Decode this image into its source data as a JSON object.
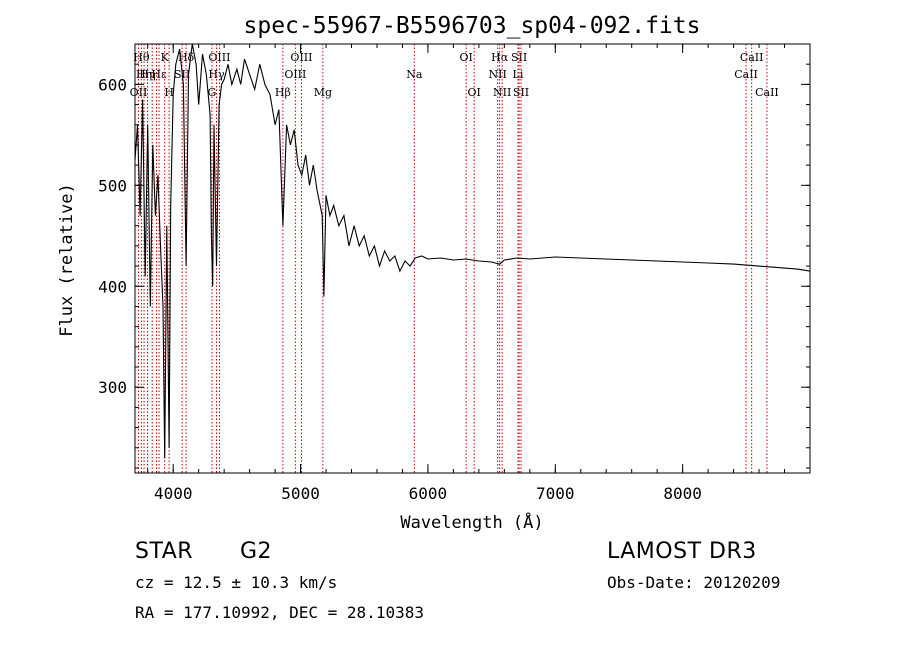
{
  "chart_data": {
    "type": "line",
    "title": "spec-55967-B5596703_sp04-092.fits",
    "xlabel": "Wavelength (Å)",
    "ylabel": "Flux (relative)",
    "xlim": [
      3700,
      9000
    ],
    "ylim": [
      215,
      640
    ],
    "xticks": [
      4000,
      5000,
      6000,
      7000,
      8000
    ],
    "yticks": [
      300,
      400,
      500,
      600
    ],
    "x_minor_step": 200,
    "y_minor_step": 20,
    "grid": false,
    "series": [
      {
        "name": "spectrum",
        "x": [
          3700,
          3720,
          3740,
          3760,
          3780,
          3800,
          3820,
          3840,
          3860,
          3880,
          3900,
          3920,
          3933,
          3950,
          3968,
          3980,
          4000,
          4020,
          4050,
          4080,
          4101,
          4120,
          4150,
          4180,
          4200,
          4230,
          4260,
          4290,
          4300,
          4310,
          4320,
          4340,
          4360,
          4380,
          4400,
          4430,
          4460,
          4500,
          4530,
          4560,
          4600,
          4640,
          4680,
          4720,
          4760,
          4800,
          4830,
          4861,
          4890,
          4920,
          4950,
          4980,
          5010,
          5040,
          5070,
          5100,
          5130,
          5170,
          5183,
          5200,
          5230,
          5260,
          5300,
          5340,
          5380,
          5420,
          5460,
          5500,
          5540,
          5580,
          5620,
          5660,
          5700,
          5740,
          5780,
          5820,
          5860,
          5900,
          5950,
          6000,
          6100,
          6200,
          6300,
          6400,
          6500,
          6563,
          6600,
          6700,
          6800,
          6900,
          7000,
          7200,
          7400,
          7600,
          7800,
          8000,
          8200,
          8400,
          8500,
          8600,
          8700,
          8800,
          8900,
          9000
        ],
        "y": [
          525,
          560,
          470,
          585,
          410,
          560,
          380,
          540,
          470,
          510,
          440,
          380,
          230,
          460,
          240,
          480,
          590,
          620,
          635,
          600,
          420,
          610,
          640,
          620,
          580,
          630,
          610,
          570,
          450,
          400,
          560,
          420,
          580,
          600,
          605,
          620,
          600,
          615,
          600,
          625,
          610,
          595,
          620,
          600,
          590,
          560,
          575,
          460,
          560,
          540,
          555,
          520,
          510,
          530,
          500,
          520,
          495,
          470,
          390,
          490,
          470,
          480,
          460,
          470,
          440,
          460,
          440,
          450,
          430,
          440,
          420,
          435,
          425,
          430,
          415,
          425,
          420,
          428,
          430,
          427,
          428,
          426,
          427,
          425,
          424,
          422,
          426,
          428,
          427,
          428,
          429,
          428,
          427,
          426,
          425,
          424,
          423,
          422,
          421,
          420,
          419,
          418,
          417,
          415
        ]
      }
    ],
    "line_markers": [
      {
        "x": 3727,
        "label": "OII",
        "row": 3
      },
      {
        "x": 3750,
        "label": "Hθ",
        "row": 1
      },
      {
        "x": 3771,
        "label": "Hη",
        "row": 2
      },
      {
        "x": 3798,
        "label": "Hη",
        "row": 2
      },
      {
        "x": 3835,
        "label": "",
        "row": 0
      },
      {
        "x": 3869,
        "label": "",
        "row": 0
      },
      {
        "x": 3889,
        "label": "Hε",
        "row": 2
      },
      {
        "x": 3933,
        "label": "K",
        "row": 1
      },
      {
        "x": 3968,
        "label": "H",
        "row": 3
      },
      {
        "x": 4070,
        "label": "SII",
        "row": 2
      },
      {
        "x": 4101,
        "label": "Hδ",
        "row": 1
      },
      {
        "x": 4304,
        "label": "G",
        "row": 3
      },
      {
        "x": 4340,
        "label": "Hγ",
        "row": 2
      },
      {
        "x": 4363,
        "label": "OIII",
        "row": 1
      },
      {
        "x": 4861,
        "label": "Hβ",
        "row": 3
      },
      {
        "x": 4959,
        "label": "OIII",
        "row": 2
      },
      {
        "x": 5007,
        "label": "OIII",
        "row": 1
      },
      {
        "x": 5175,
        "label": "Mg",
        "row": 3
      },
      {
        "x": 5893,
        "label": "Na",
        "row": 2
      },
      {
        "x": 6300,
        "label": "OI",
        "row": 1
      },
      {
        "x": 6363,
        "label": "OI",
        "row": 3
      },
      {
        "x": 6548,
        "label": "NII",
        "row": 2
      },
      {
        "x": 6563,
        "label": "Hα",
        "row": 1
      },
      {
        "x": 6583,
        "label": "NII",
        "row": 3
      },
      {
        "x": 6707,
        "label": "Li",
        "row": 2
      },
      {
        "x": 6716,
        "label": "SII",
        "row": 1
      },
      {
        "x": 6731,
        "label": "SII",
        "row": 3
      },
      {
        "x": 8498,
        "label": "CaII",
        "row": 2
      },
      {
        "x": 8542,
        "label": "CaII",
        "row": 1
      },
      {
        "x": 8662,
        "label": "CaII",
        "row": 3
      }
    ]
  },
  "info": {
    "object_class": "STAR",
    "subclass": "G2",
    "survey": "LAMOST DR3",
    "redshift": "cz = 12.5 ± 10.3 km/s",
    "obs_date": "Obs-Date: 20120209",
    "coords": "RA = 177.10992, DEC =  28.10383"
  },
  "colors": {
    "axis": "#000000",
    "spectrum": "#000000",
    "marker": "#cc0000"
  }
}
